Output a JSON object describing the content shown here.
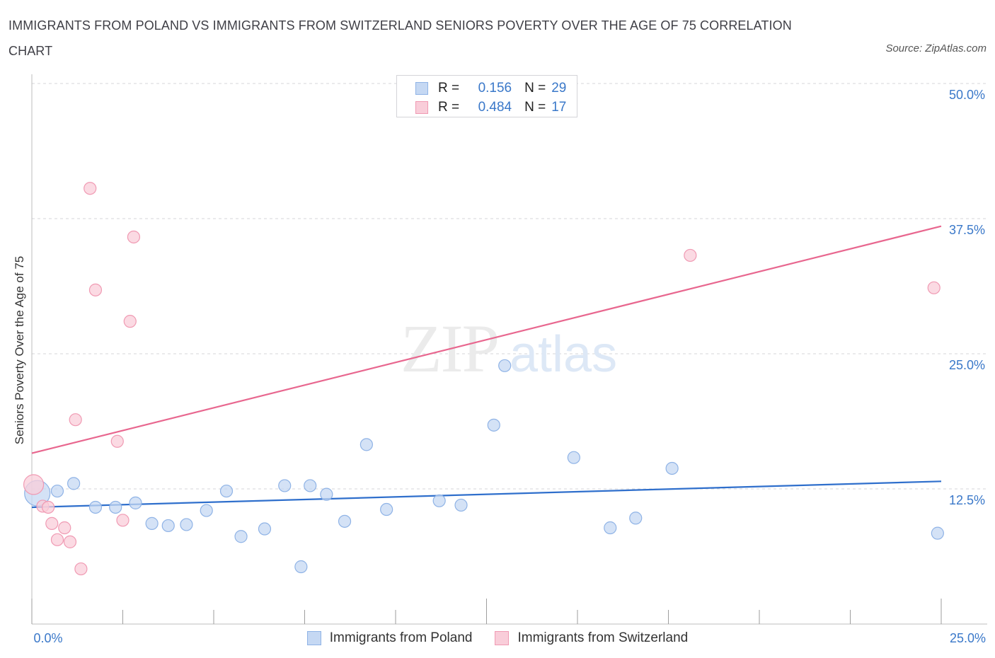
{
  "title": "IMMIGRANTS FROM POLAND VS IMMIGRANTS FROM SWITZERLAND SENIORS POVERTY OVER THE AGE OF 75 CORRELATION CHART",
  "source": "Source: ZipAtlas.com",
  "watermark": {
    "zip": "ZIP",
    "atlas": "atlas"
  },
  "legend": {
    "rows": [
      {
        "r_label": "R =",
        "r_value": "0.156",
        "n_label": "N =",
        "n_value": "29"
      },
      {
        "r_label": "R =",
        "r_value": "0.484",
        "n_label": "N =",
        "n_value": "17"
      }
    ]
  },
  "colors": {
    "poland_fill": "#c5d8f3",
    "poland_stroke": "#8fb3e6",
    "poland_line": "#2f6fcc",
    "swiss_fill": "#f9cdd9",
    "swiss_stroke": "#f09ab3",
    "swiss_line": "#e8678f",
    "tick_label": "#3a78c9",
    "grid": "#d4d4d8"
  },
  "chart_data": {
    "type": "scatter",
    "title": "IMMIGRANTS FROM POLAND VS IMMIGRANTS FROM SWITZERLAND SENIORS POVERTY OVER THE AGE OF 75 CORRELATION CHART",
    "xlabel": "",
    "ylabel": "Seniors Poverty Over the Age of 75",
    "xlim": [
      0,
      25
    ],
    "ylim": [
      0,
      50
    ],
    "x_tick_labels": [
      "0.0%",
      "25.0%"
    ],
    "y_tick_labels": [
      {
        "value": 12.5,
        "label": "12.5%"
      },
      {
        "value": 25,
        "label": "25.0%"
      },
      {
        "value": 37.5,
        "label": "37.5%"
      },
      {
        "value": 50,
        "label": "50.0%"
      }
    ],
    "series": [
      {
        "name": "Immigrants from Poland",
        "r": 0.156,
        "n": 29,
        "trend": {
          "x": [
            0,
            25
          ],
          "y": [
            10.8,
            13.2
          ]
        },
        "points": [
          {
            "x": 0.15,
            "y": 12.1
          },
          {
            "x": 0.7,
            "y": 12.3
          },
          {
            "x": 1.15,
            "y": 13.0
          },
          {
            "x": 1.75,
            "y": 10.8
          },
          {
            "x": 2.3,
            "y": 10.8
          },
          {
            "x": 2.85,
            "y": 11.2
          },
          {
            "x": 3.3,
            "y": 9.3
          },
          {
            "x": 3.75,
            "y": 9.1
          },
          {
            "x": 4.25,
            "y": 9.2
          },
          {
            "x": 4.8,
            "y": 10.5
          },
          {
            "x": 5.35,
            "y": 12.3
          },
          {
            "x": 5.75,
            "y": 8.1
          },
          {
            "x": 6.4,
            "y": 8.8
          },
          {
            "x": 6.95,
            "y": 12.8
          },
          {
            "x": 7.4,
            "y": 5.3
          },
          {
            "x": 7.65,
            "y": 12.8
          },
          {
            "x": 8.1,
            "y": 12.0
          },
          {
            "x": 8.6,
            "y": 9.5
          },
          {
            "x": 9.2,
            "y": 16.6
          },
          {
            "x": 9.75,
            "y": 10.6
          },
          {
            "x": 11.2,
            "y": 11.4
          },
          {
            "x": 11.8,
            "y": 11.0
          },
          {
            "x": 12.7,
            "y": 18.4
          },
          {
            "x": 13.0,
            "y": 23.9
          },
          {
            "x": 14.9,
            "y": 15.4
          },
          {
            "x": 15.9,
            "y": 8.9
          },
          {
            "x": 16.6,
            "y": 9.8
          },
          {
            "x": 17.6,
            "y": 14.4
          },
          {
            "x": 24.9,
            "y": 8.4
          }
        ]
      },
      {
        "name": "Immigrants from Switzerland",
        "r": 0.484,
        "n": 17,
        "trend": {
          "x": [
            0,
            25
          ],
          "y": [
            15.8,
            36.8
          ]
        },
        "points": [
          {
            "x": 0.05,
            "y": 12.9
          },
          {
            "x": 0.3,
            "y": 10.9
          },
          {
            "x": 0.45,
            "y": 10.8
          },
          {
            "x": 0.55,
            "y": 9.3
          },
          {
            "x": 0.7,
            "y": 7.8
          },
          {
            "x": 0.9,
            "y": 8.9
          },
          {
            "x": 1.05,
            "y": 7.6
          },
          {
            "x": 1.2,
            "y": 18.9
          },
          {
            "x": 1.35,
            "y": 5.1
          },
          {
            "x": 1.6,
            "y": 40.3
          },
          {
            "x": 1.75,
            "y": 30.9
          },
          {
            "x": 2.35,
            "y": 16.9
          },
          {
            "x": 2.5,
            "y": 9.6
          },
          {
            "x": 2.7,
            "y": 28.0
          },
          {
            "x": 2.8,
            "y": 35.8
          },
          {
            "x": 18.1,
            "y": 34.1
          },
          {
            "x": 24.8,
            "y": 31.1
          }
        ]
      }
    ]
  }
}
